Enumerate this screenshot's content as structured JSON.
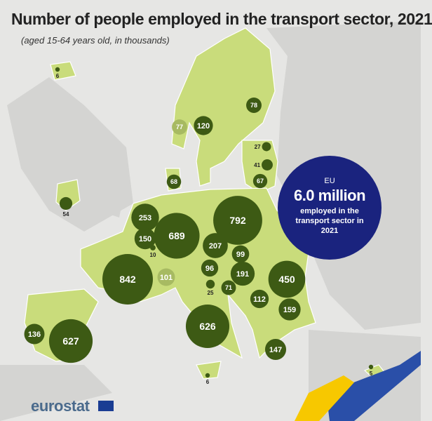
{
  "title": "Number of people employed in the transport sector, 2021",
  "subtitle": "(aged 15-64 years old, in thousands)",
  "colors": {
    "background": "#e6e6e4",
    "land_highlight": "#c9dc7b",
    "land_other": "#d4d4d2",
    "bubble_dark": "#3d5a14",
    "bubble_light": "#a7ba62",
    "eu_circle": "#1a237e",
    "stripe_blue": "#2a4fa8",
    "stripe_yellow": "#f7c800"
  },
  "bubbles": [
    {
      "value": 6,
      "display": "6"
    },
    {
      "value": 54,
      "display": "54"
    },
    {
      "value": 77,
      "display": "77"
    },
    {
      "value": 120,
      "display": "120"
    },
    {
      "value": 78,
      "display": "78"
    },
    {
      "value": 27,
      "display": "27"
    },
    {
      "value": 41,
      "display": "41"
    },
    {
      "value": 67,
      "display": "67"
    },
    {
      "value": 68,
      "display": "68"
    },
    {
      "value": 253,
      "display": "253"
    },
    {
      "value": 150,
      "display": "150"
    },
    {
      "value": 10,
      "display": "10"
    },
    {
      "value": 689,
      "display": "689"
    },
    {
      "value": 792,
      "display": "792"
    },
    {
      "value": 207,
      "display": "207"
    },
    {
      "value": 99,
      "display": "99"
    },
    {
      "value": 842,
      "display": "842"
    },
    {
      "value": 101,
      "display": "101"
    },
    {
      "value": 96,
      "display": "96"
    },
    {
      "value": 191,
      "display": "191"
    },
    {
      "value": 450,
      "display": "450"
    },
    {
      "value": 25,
      "display": "25"
    },
    {
      "value": 71,
      "display": "71"
    },
    {
      "value": 112,
      "display": "112"
    },
    {
      "value": 159,
      "display": "159"
    },
    {
      "value": 136,
      "display": "136"
    },
    {
      "value": 627,
      "display": "627"
    },
    {
      "value": 626,
      "display": "626"
    },
    {
      "value": 147,
      "display": "147"
    },
    {
      "value": 6,
      "display": "6"
    },
    {
      "value": 5,
      "display": "5"
    }
  ],
  "eu_total": {
    "label": "EU",
    "value": "6.0 million",
    "description": "employed in the transport sector in 2021"
  },
  "source_logo": "eurostat"
}
